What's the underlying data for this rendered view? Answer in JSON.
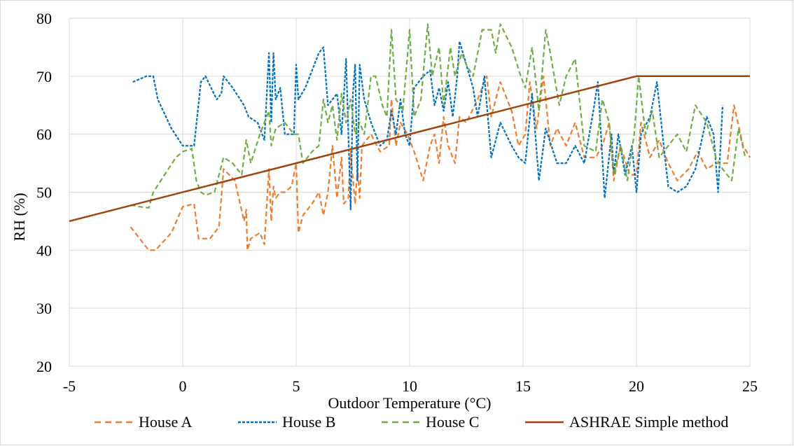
{
  "chart_data": {
    "type": "line",
    "title": "",
    "xlabel": "Outdoor Temperature (°C)",
    "ylabel": "RH (%)",
    "xlim": [
      -5,
      25
    ],
    "ylim": [
      20,
      80
    ],
    "xticks": [
      -5,
      0,
      5,
      10,
      15,
      20,
      25
    ],
    "yticks": [
      20,
      30,
      40,
      50,
      60,
      70,
      80
    ],
    "grid": true,
    "legend_position": "bottom",
    "series": [
      {
        "name": "House A",
        "color": "#ED7D31",
        "dash": "dashed",
        "points": [
          [
            -2.3,
            44
          ],
          [
            -1.5,
            40
          ],
          [
            -1.2,
            40
          ],
          [
            -0.5,
            43
          ],
          [
            0,
            47.5
          ],
          [
            0.5,
            48
          ],
          [
            0.7,
            42
          ],
          [
            1.2,
            42
          ],
          [
            1.6,
            44
          ],
          [
            1.8,
            54
          ],
          [
            2.3,
            52
          ],
          [
            2.7,
            45
          ],
          [
            2.8,
            47
          ],
          [
            2.85,
            40
          ],
          [
            3.0,
            42
          ],
          [
            3.4,
            43
          ],
          [
            3.6,
            41
          ],
          [
            3.8,
            54
          ],
          [
            3.9,
            45
          ],
          [
            4.0,
            51
          ],
          [
            4.1,
            49
          ],
          [
            4.3,
            50
          ],
          [
            4.5,
            50
          ],
          [
            4.8,
            51
          ],
          [
            5.0,
            55
          ],
          [
            5.1,
            43
          ],
          [
            5.3,
            46
          ],
          [
            5.7,
            48
          ],
          [
            6.0,
            50
          ],
          [
            6.2,
            46
          ],
          [
            6.4,
            50
          ],
          [
            6.6,
            58
          ],
          [
            6.8,
            49
          ],
          [
            7.0,
            56
          ],
          [
            7.1,
            48
          ],
          [
            7.3,
            49
          ],
          [
            7.4,
            57
          ],
          [
            7.6,
            48
          ],
          [
            7.7,
            54
          ],
          [
            7.8,
            49
          ],
          [
            7.9,
            58
          ],
          [
            8.3,
            60
          ],
          [
            8.7,
            57
          ],
          [
            9.1,
            58
          ],
          [
            9.2,
            66
          ],
          [
            9.4,
            58
          ],
          [
            9.6,
            62
          ],
          [
            9.9,
            60
          ],
          [
            10.2,
            57
          ],
          [
            10.6,
            52
          ],
          [
            10.9,
            58
          ],
          [
            11.1,
            60
          ],
          [
            11.3,
            55
          ],
          [
            11.5,
            63
          ],
          [
            11.7,
            58
          ],
          [
            12.0,
            55
          ],
          [
            12.2,
            63
          ],
          [
            12.5,
            62
          ],
          [
            13.0,
            66
          ],
          [
            13.4,
            70
          ],
          [
            13.6,
            63
          ],
          [
            14.0,
            69
          ],
          [
            14.5,
            64
          ],
          [
            14.8,
            58
          ],
          [
            15.1,
            60
          ],
          [
            15.3,
            69
          ],
          [
            15.6,
            61
          ],
          [
            15.9,
            70
          ],
          [
            16.2,
            58
          ],
          [
            16.5,
            61
          ],
          [
            16.9,
            58
          ],
          [
            17.3,
            62
          ],
          [
            17.7,
            56
          ],
          [
            18.2,
            56
          ],
          [
            18.5,
            58
          ],
          [
            18.8,
            62
          ],
          [
            19.0,
            52
          ],
          [
            19.3,
            58
          ],
          [
            19.7,
            53
          ],
          [
            20.0,
            53
          ],
          [
            20.2,
            62
          ],
          [
            20.6,
            56
          ],
          [
            21.0,
            59
          ],
          [
            21.4,
            55
          ],
          [
            21.8,
            52
          ],
          [
            22.3,
            54
          ],
          [
            22.7,
            57
          ],
          [
            23.1,
            54
          ],
          [
            23.5,
            55
          ],
          [
            24.0,
            55
          ],
          [
            24.3,
            65
          ],
          [
            24.7,
            58
          ],
          [
            25.0,
            56
          ]
        ]
      },
      {
        "name": "House B",
        "color": "#0070C0",
        "dash": "dotted",
        "points": [
          [
            -2.2,
            69
          ],
          [
            -1.6,
            70
          ],
          [
            -1.3,
            70
          ],
          [
            -1.1,
            66
          ],
          [
            -0.5,
            61
          ],
          [
            0,
            58
          ],
          [
            0.5,
            58
          ],
          [
            0.8,
            69
          ],
          [
            1.0,
            70
          ],
          [
            1.5,
            66
          ],
          [
            1.7,
            67
          ],
          [
            1.8,
            70
          ],
          [
            2.2,
            68
          ],
          [
            2.7,
            65
          ],
          [
            2.8,
            64
          ],
          [
            2.9,
            63
          ],
          [
            3.3,
            62
          ],
          [
            3.6,
            59
          ],
          [
            3.8,
            74
          ],
          [
            3.9,
            62
          ],
          [
            4.0,
            74
          ],
          [
            4.1,
            66
          ],
          [
            4.3,
            68
          ],
          [
            4.5,
            60
          ],
          [
            4.9,
            60
          ],
          [
            5.0,
            72
          ],
          [
            5.1,
            66
          ],
          [
            5.4,
            68
          ],
          [
            5.7,
            71
          ],
          [
            6.0,
            74
          ],
          [
            6.2,
            75
          ],
          [
            6.4,
            65
          ],
          [
            6.8,
            67
          ],
          [
            7.0,
            60
          ],
          [
            7.2,
            73
          ],
          [
            7.4,
            47
          ],
          [
            7.5,
            67
          ],
          [
            7.6,
            72
          ],
          [
            7.7,
            52
          ],
          [
            7.8,
            72
          ],
          [
            8.0,
            66
          ],
          [
            8.3,
            62
          ],
          [
            8.7,
            58
          ],
          [
            9.0,
            59
          ],
          [
            9.2,
            64
          ],
          [
            9.4,
            60
          ],
          [
            9.6,
            66
          ],
          [
            9.8,
            60
          ],
          [
            10.0,
            58
          ],
          [
            10.2,
            68
          ],
          [
            10.6,
            70
          ],
          [
            10.9,
            71
          ],
          [
            11.1,
            65
          ],
          [
            11.3,
            68
          ],
          [
            11.5,
            64
          ],
          [
            11.7,
            69
          ],
          [
            11.9,
            63
          ],
          [
            12.1,
            70
          ],
          [
            12.2,
            76
          ],
          [
            12.5,
            72
          ],
          [
            12.8,
            68
          ],
          [
            13.0,
            63
          ],
          [
            13.3,
            70
          ],
          [
            13.6,
            56
          ],
          [
            14.0,
            62
          ],
          [
            14.5,
            58
          ],
          [
            14.8,
            56
          ],
          [
            15.1,
            55
          ],
          [
            15.4,
            67
          ],
          [
            15.7,
            52
          ],
          [
            16.0,
            61
          ],
          [
            16.5,
            55
          ],
          [
            16.9,
            55
          ],
          [
            17.3,
            58
          ],
          [
            17.7,
            55
          ],
          [
            18.1,
            64
          ],
          [
            18.3,
            69
          ],
          [
            18.6,
            49
          ],
          [
            18.9,
            60
          ],
          [
            19.0,
            53
          ],
          [
            19.2,
            60
          ],
          [
            19.5,
            53
          ],
          [
            19.8,
            58
          ],
          [
            20.0,
            50
          ],
          [
            20.2,
            60
          ],
          [
            20.6,
            63
          ],
          [
            20.9,
            69
          ],
          [
            21.2,
            58
          ],
          [
            21.4,
            51
          ],
          [
            21.8,
            50
          ],
          [
            22.2,
            51
          ],
          [
            22.6,
            54
          ],
          [
            23.1,
            63
          ],
          [
            23.4,
            60
          ],
          [
            23.6,
            50
          ],
          [
            23.8,
            65
          ]
        ]
      },
      {
        "name": "House C",
        "color": "#70AD47",
        "dash": "dashed",
        "points": [
          [
            -2.3,
            47.8
          ],
          [
            -1.9,
            47.5
          ],
          [
            -1.5,
            47.3
          ],
          [
            -1.3,
            50
          ],
          [
            -0.8,
            53
          ],
          [
            -0.3,
            56
          ],
          [
            0,
            57
          ],
          [
            0.4,
            57.5
          ],
          [
            0.6,
            52
          ],
          [
            0.8,
            50
          ],
          [
            1.0,
            49.5
          ],
          [
            1.4,
            50
          ],
          [
            1.8,
            56
          ],
          [
            2.2,
            55
          ],
          [
            2.6,
            53
          ],
          [
            2.8,
            59
          ],
          [
            3.0,
            55
          ],
          [
            3.4,
            60
          ],
          [
            3.6,
            62
          ],
          [
            3.8,
            64
          ],
          [
            3.9,
            58
          ],
          [
            4.1,
            61
          ],
          [
            4.5,
            62
          ],
          [
            4.9,
            60
          ],
          [
            5.1,
            60
          ],
          [
            5.3,
            55
          ],
          [
            5.7,
            57
          ],
          [
            6.0,
            58
          ],
          [
            6.2,
            66
          ],
          [
            6.4,
            62
          ],
          [
            6.6,
            65
          ],
          [
            6.8,
            59
          ],
          [
            7.0,
            67
          ],
          [
            7.2,
            62
          ],
          [
            7.4,
            66
          ],
          [
            7.6,
            60
          ],
          [
            7.8,
            62
          ],
          [
            8.0,
            60
          ],
          [
            8.3,
            70
          ],
          [
            8.5,
            70
          ],
          [
            8.8,
            65
          ],
          [
            9.0,
            63
          ],
          [
            9.2,
            78
          ],
          [
            9.4,
            66
          ],
          [
            9.7,
            64
          ],
          [
            10.0,
            78
          ],
          [
            10.2,
            63
          ],
          [
            10.5,
            66
          ],
          [
            10.8,
            79
          ],
          [
            11.0,
            70
          ],
          [
            11.3,
            75
          ],
          [
            11.5,
            65
          ],
          [
            11.8,
            75
          ],
          [
            12.0,
            70
          ],
          [
            12.3,
            74
          ],
          [
            12.5,
            72
          ],
          [
            12.8,
            70
          ],
          [
            13.2,
            78
          ],
          [
            13.6,
            78
          ],
          [
            13.8,
            74
          ],
          [
            14.0,
            79
          ],
          [
            14.5,
            75
          ],
          [
            14.9,
            70
          ],
          [
            15.1,
            68
          ],
          [
            15.4,
            75
          ],
          [
            15.7,
            64
          ],
          [
            16.0,
            78
          ],
          [
            16.2,
            74
          ],
          [
            16.6,
            65
          ],
          [
            16.9,
            70
          ],
          [
            17.3,
            73
          ],
          [
            17.7,
            58
          ],
          [
            18.2,
            57
          ],
          [
            18.5,
            66
          ],
          [
            18.8,
            62
          ],
          [
            19.0,
            53
          ],
          [
            19.3,
            58
          ],
          [
            19.6,
            52
          ],
          [
            19.9,
            60
          ],
          [
            20.1,
            70
          ],
          [
            20.4,
            60
          ],
          [
            20.7,
            64
          ],
          [
            21.0,
            56
          ],
          [
            21.4,
            58
          ],
          [
            21.8,
            60
          ],
          [
            22.2,
            57
          ],
          [
            22.6,
            65
          ],
          [
            23.1,
            62
          ],
          [
            23.5,
            56
          ],
          [
            23.8,
            54
          ],
          [
            24.2,
            52
          ],
          [
            24.5,
            61
          ],
          [
            24.8,
            56
          ]
        ]
      },
      {
        "name": "ASHRAE Simple method",
        "color": "#A0440E",
        "dash": "solid",
        "points": [
          [
            -5,
            45
          ],
          [
            20,
            70
          ],
          [
            25,
            70
          ]
        ]
      }
    ]
  }
}
